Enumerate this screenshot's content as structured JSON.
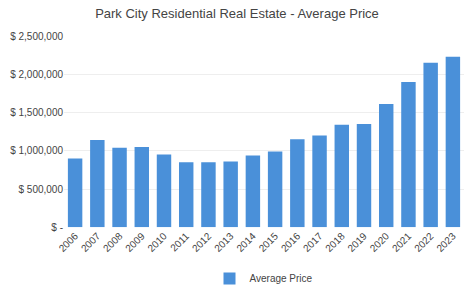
{
  "chart_data": {
    "type": "bar",
    "title": "Park City Residential Real Estate - Average Price",
    "categories": [
      "2006",
      "2007",
      "2008",
      "2009",
      "2010",
      "2011",
      "2012",
      "2013",
      "2014",
      "2015",
      "2016",
      "2017",
      "2018",
      "2019",
      "2020",
      "2021",
      "2022",
      "2023"
    ],
    "series": [
      {
        "name": "Average Price",
        "color": "#4A90D9",
        "values": [
          900000,
          1140000,
          1040000,
          1050000,
          950000,
          850000,
          850000,
          860000,
          940000,
          990000,
          1150000,
          1200000,
          1340000,
          1350000,
          1610000,
          1900000,
          2150000,
          2230000
        ]
      }
    ],
    "ylim": [
      0,
      2500000
    ],
    "yticks": [
      {
        "value": 0,
        "label": "$ -"
      },
      {
        "value": 500000,
        "label": "$ 500,000"
      },
      {
        "value": 1000000,
        "label": "$ 1,000,000"
      },
      {
        "value": 1500000,
        "label": "$ 1,500,000"
      },
      {
        "value": 2000000,
        "label": "$ 2,000,000"
      },
      {
        "value": 2500000,
        "label": "$ 2,500,000"
      }
    ],
    "grid": true,
    "legend": "bottom"
  }
}
